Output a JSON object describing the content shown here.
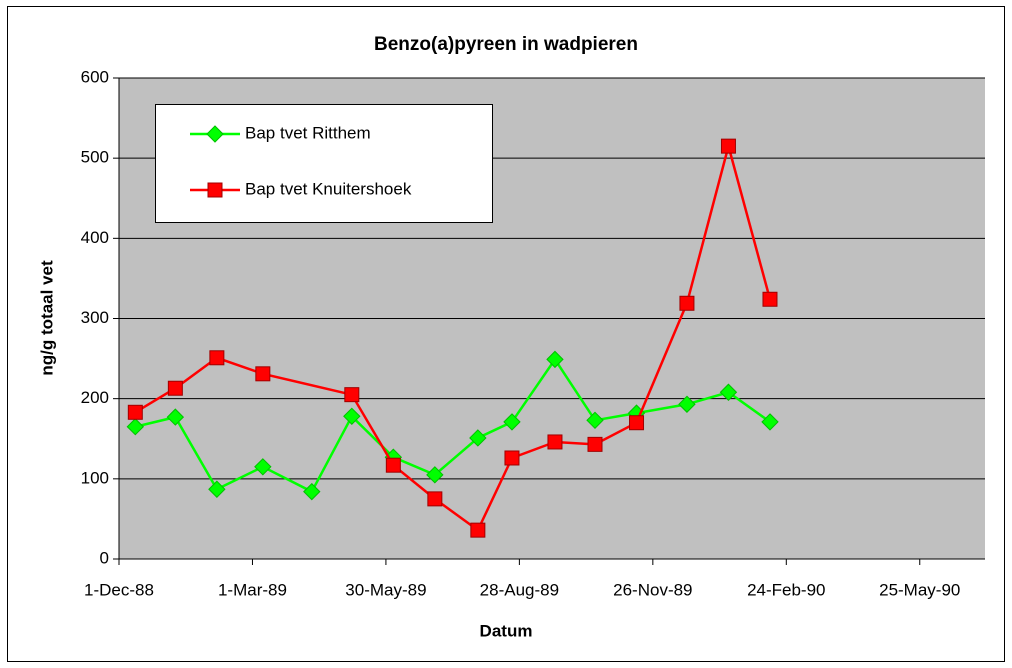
{
  "chart_data": {
    "type": "line",
    "title": "Benzo(a)pyreen in wadpieren",
    "xlabel": "Datum",
    "ylabel": "ng/g totaal vet",
    "xlim": [
      "1988-12-01",
      "1990-07-08"
    ],
    "xticks": [
      {
        "value": "1988-12-01",
        "label": "1-Dec-88"
      },
      {
        "value": "1989-03-01",
        "label": "1-Mar-89"
      },
      {
        "value": "1989-05-30",
        "label": "30-May-89"
      },
      {
        "value": "1989-08-28",
        "label": "28-Aug-89"
      },
      {
        "value": "1989-11-26",
        "label": "26-Nov-89"
      },
      {
        "value": "1990-02-24",
        "label": "24-Feb-90"
      },
      {
        "value": "1990-05-25",
        "label": "25-May-90"
      }
    ],
    "ylim": [
      0,
      600
    ],
    "yticks": [
      0,
      100,
      200,
      300,
      400,
      500,
      600
    ],
    "grid": true,
    "legend": "upper left",
    "series": [
      {
        "name": "Bap tvet Ritthem",
        "color": "#00ff00",
        "marker": "diamond",
        "x": [
          "1988-12-12",
          "1989-01-08",
          "1989-02-05",
          "1989-03-08",
          "1989-04-10",
          "1989-05-07",
          "1989-06-04",
          "1989-07-02",
          "1989-07-31",
          "1989-08-23",
          "1989-09-21",
          "1989-10-18",
          "1989-11-15",
          "1989-12-19",
          "1990-01-16",
          "1990-02-13"
        ],
        "values": [
          165,
          177,
          87,
          115,
          84,
          178,
          127,
          105,
          151,
          171,
          249,
          173,
          182,
          193,
          208,
          171
        ]
      },
      {
        "name": "Bap tvet Knuitershoek",
        "color": "#ff0000",
        "marker": "square",
        "x": [
          "1988-12-12",
          "1989-01-08",
          "1989-02-05",
          "1989-03-08",
          "1989-05-07",
          "1989-06-04",
          "1989-07-02",
          "1989-07-31",
          "1989-08-23",
          "1989-09-21",
          "1989-10-18",
          "1989-11-15",
          "1989-12-19",
          "1990-01-16",
          "1990-02-13"
        ],
        "values": [
          183,
          213,
          251,
          231,
          205,
          117,
          75,
          36,
          126,
          146,
          143,
          170,
          319,
          515,
          324
        ]
      }
    ]
  }
}
